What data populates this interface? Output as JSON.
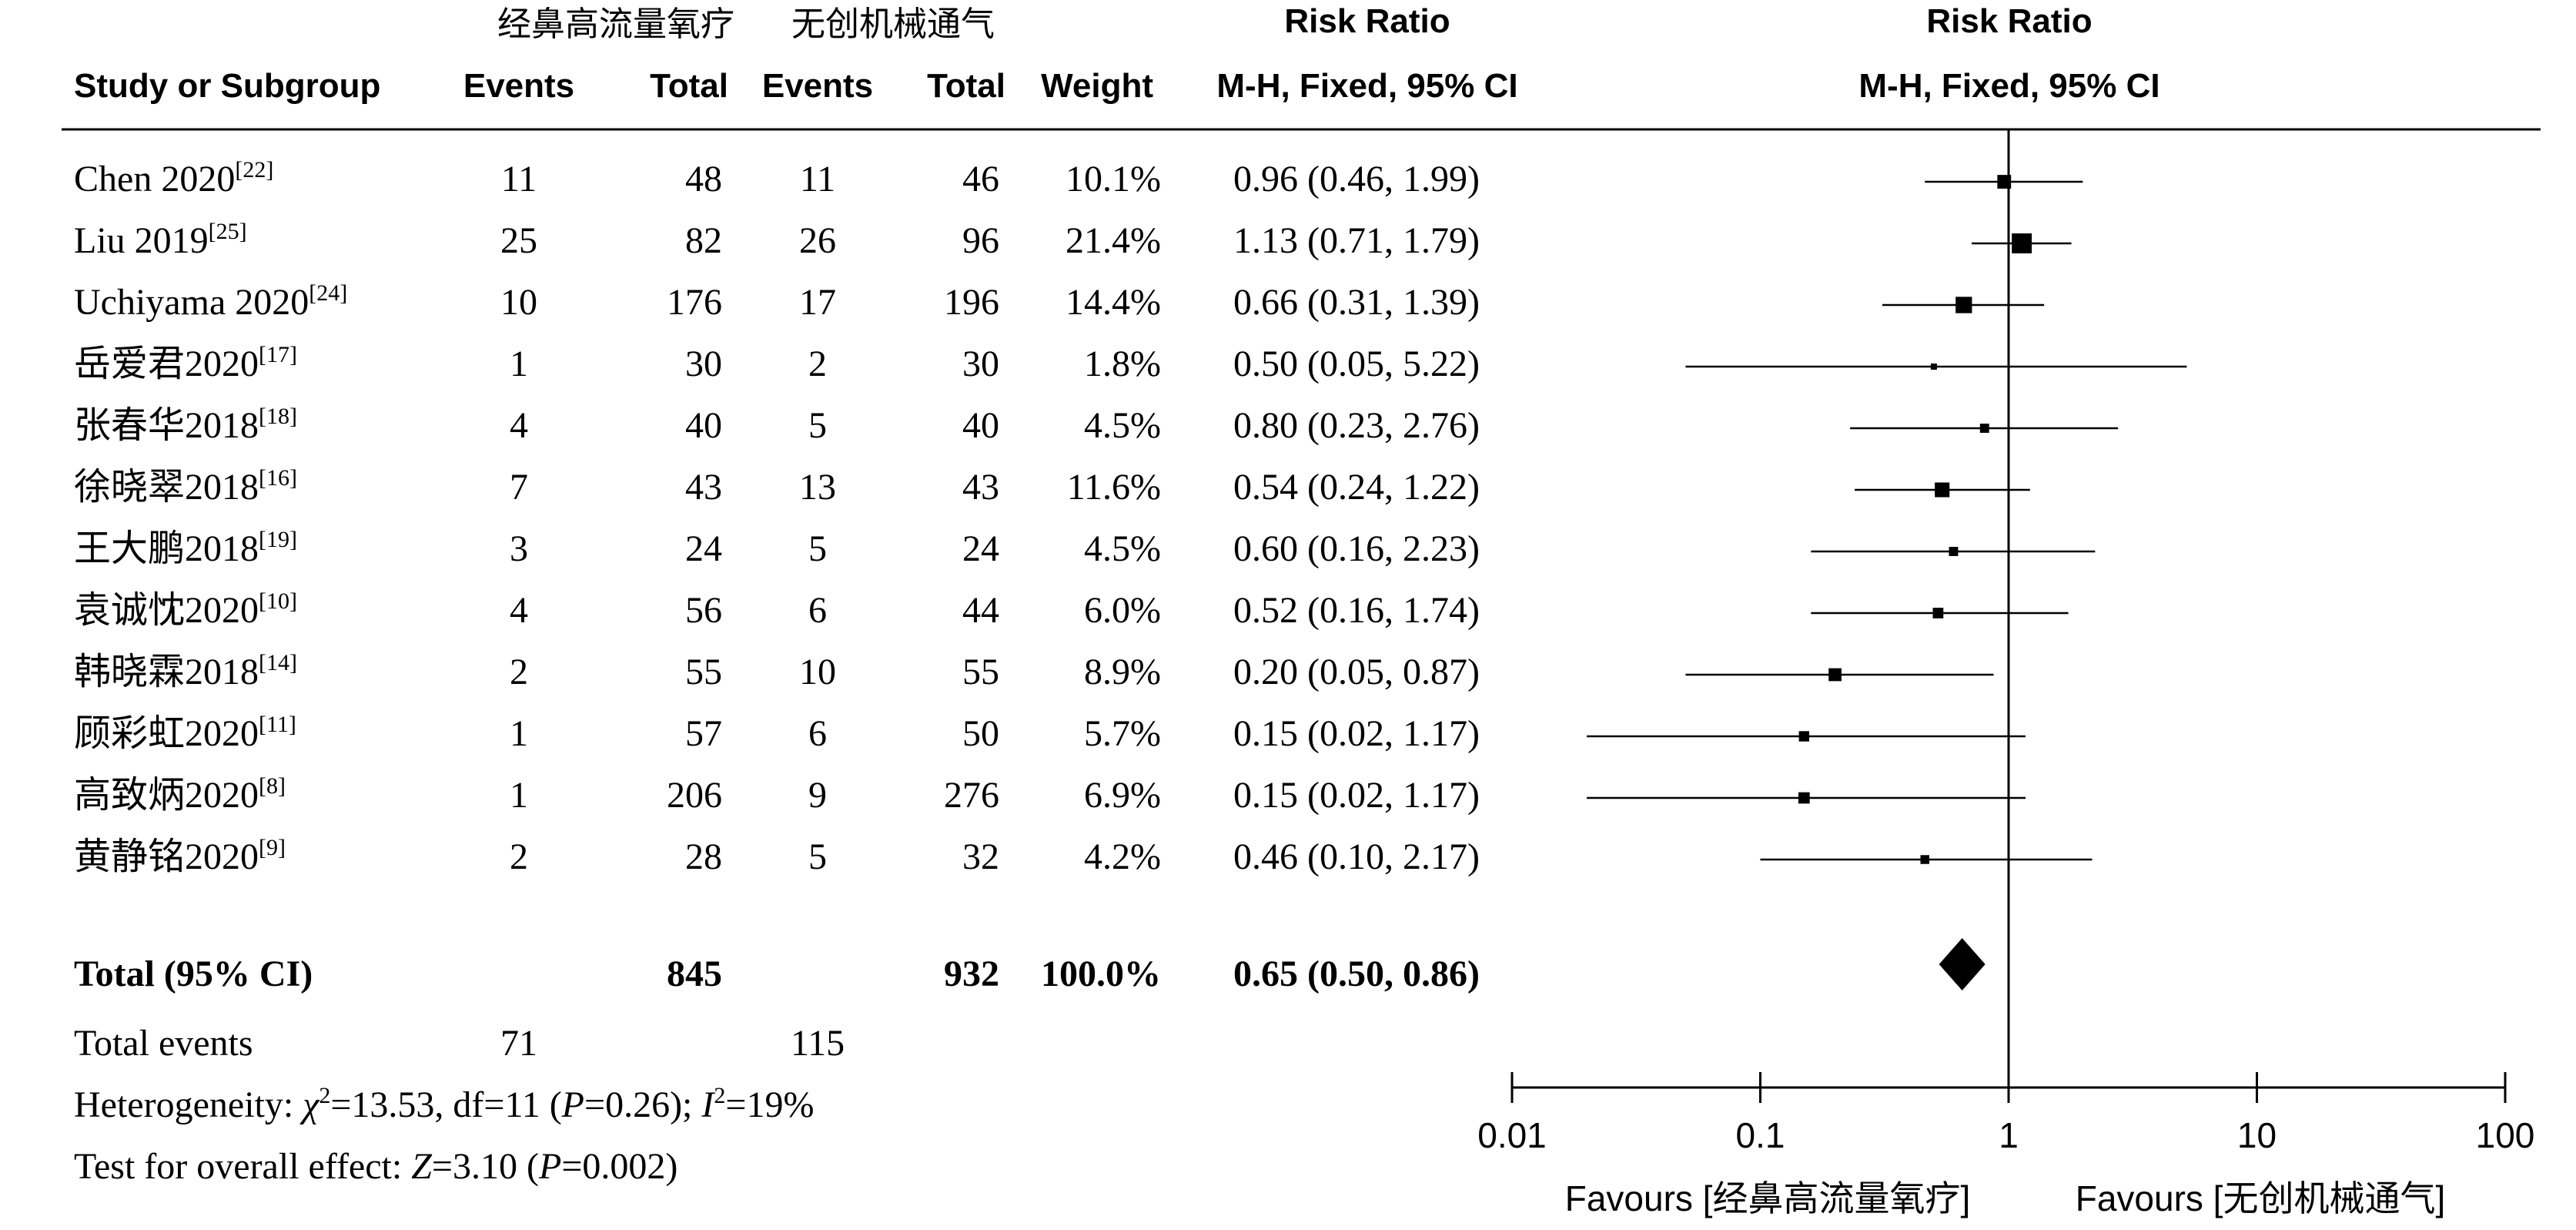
{
  "headers": {
    "group1": "经鼻高流量氧疗",
    "group2": "无创机械通气",
    "rr_title_table": "Risk Ratio",
    "rr_title_plot": "Risk Ratio",
    "study_col": "Study or Subgroup",
    "events1": "Events",
    "total1": "Total",
    "events2": "Events",
    "total2": "Total",
    "weight": "Weight",
    "method_table": "M-H, Fixed, 95% CI",
    "method_plot": "M-H, Fixed, 95% CI"
  },
  "chart_data": {
    "type": "forest",
    "scale": "log",
    "xlim": [
      0.01,
      100
    ],
    "ticks": [
      "0.01",
      "0.1",
      "1",
      "10",
      "100"
    ],
    "tick_values": [
      0.01,
      0.1,
      1,
      10,
      100
    ],
    "studies": [
      {
        "name": "Chen 2020",
        "ref": "[22]",
        "e1": "11",
        "t1": "48",
        "e2": "11",
        "t2": "46",
        "weight": "10.1%",
        "ci_text": "0.96 (0.46, 1.99)",
        "rr": 0.96,
        "lo": 0.46,
        "hi": 1.99
      },
      {
        "name": "Liu 2019",
        "ref": "[25]",
        "e1": "25",
        "t1": "82",
        "e2": "26",
        "t2": "96",
        "weight": "21.4%",
        "ci_text": "1.13 (0.71, 1.79)",
        "rr": 1.13,
        "lo": 0.71,
        "hi": 1.79
      },
      {
        "name": "Uchiyama 2020",
        "ref": "[24]",
        "e1": "10",
        "t1": "176",
        "e2": "17",
        "t2": "196",
        "weight": "14.4%",
        "ci_text": "0.66 (0.31, 1.39)",
        "rr": 0.66,
        "lo": 0.31,
        "hi": 1.39
      },
      {
        "name": "岳爱君2020",
        "ref": "[17]",
        "e1": "1",
        "t1": "30",
        "e2": "2",
        "t2": "30",
        "weight": "1.8%",
        "ci_text": "0.50 (0.05, 5.22)",
        "rr": 0.5,
        "lo": 0.05,
        "hi": 5.22
      },
      {
        "name": "张春华2018",
        "ref": "[18]",
        "e1": "4",
        "t1": "40",
        "e2": "5",
        "t2": "40",
        "weight": "4.5%",
        "ci_text": "0.80 (0.23, 2.76)",
        "rr": 0.8,
        "lo": 0.23,
        "hi": 2.76
      },
      {
        "name": "徐晓翠2018",
        "ref": "[16]",
        "e1": "7",
        "t1": "43",
        "e2": "13",
        "t2": "43",
        "weight": "11.6%",
        "ci_text": "0.54 (0.24, 1.22)",
        "rr": 0.54,
        "lo": 0.24,
        "hi": 1.22
      },
      {
        "name": "王大鹏2018",
        "ref": "[19]",
        "e1": "3",
        "t1": "24",
        "e2": "5",
        "t2": "24",
        "weight": "4.5%",
        "ci_text": "0.60 (0.16, 2.23)",
        "rr": 0.6,
        "lo": 0.16,
        "hi": 2.23
      },
      {
        "name": "袁诚忱2020",
        "ref": "[10]",
        "e1": "4",
        "t1": "56",
        "e2": "6",
        "t2": "44",
        "weight": "6.0%",
        "ci_text": "0.52 (0.16, 1.74)",
        "rr": 0.52,
        "lo": 0.16,
        "hi": 1.74
      },
      {
        "name": "韩晓霖2018",
        "ref": "[14]",
        "e1": "2",
        "t1": "55",
        "e2": "10",
        "t2": "55",
        "weight": "8.9%",
        "ci_text": "0.20 (0.05, 0.87)",
        "rr": 0.2,
        "lo": 0.05,
        "hi": 0.87
      },
      {
        "name": "顾彩虹2020",
        "ref": "[11]",
        "e1": "1",
        "t1": "57",
        "e2": "6",
        "t2": "50",
        "weight": "5.7%",
        "ci_text": "0.15 (0.02, 1.17)",
        "rr": 0.15,
        "lo": 0.02,
        "hi": 1.17
      },
      {
        "name": "高致炳2020",
        "ref": "[8]",
        "e1": "1",
        "t1": "206",
        "e2": "9",
        "t2": "276",
        "weight": "6.9%",
        "ci_text": "0.15 (0.02, 1.17)",
        "rr": 0.15,
        "lo": 0.02,
        "hi": 1.17
      },
      {
        "name": "黄静铭2020",
        "ref": "[9]",
        "e1": "2",
        "t1": "28",
        "e2": "5",
        "t2": "32",
        "weight": "4.2%",
        "ci_text": "0.46 (0.10, 2.17)",
        "rr": 0.46,
        "lo": 0.1,
        "hi": 2.17
      }
    ],
    "total": {
      "label": "Total (95% CI)",
      "t1": "845",
      "t2": "932",
      "weight": "100.0%",
      "ci_text": "0.65 (0.50, 0.86)",
      "rr": 0.65,
      "lo": 0.5,
      "hi": 0.86
    },
    "total_events": {
      "label": "Total events",
      "e1": "71",
      "e2": "115"
    },
    "heterogeneity": {
      "prefix": "Heterogeneity: ",
      "chi_sym": "χ",
      "chi_sup": "2",
      "chi_rest": "=13.53, df=11 (",
      "p_sym": "P",
      "p_rest": "=0.26); ",
      "i_sym": "I",
      "i_sup": "2",
      "i_rest": "=19%"
    },
    "overall": {
      "prefix": "Test for overall effect: ",
      "z_sym": "Z",
      "z_rest": "=3.10 (",
      "p_sym": "P",
      "p_rest": "=0.002)"
    },
    "favours_left": "Favours [经鼻高流量氧疗]",
    "favours_right": "Favours [无创机械通气]"
  }
}
